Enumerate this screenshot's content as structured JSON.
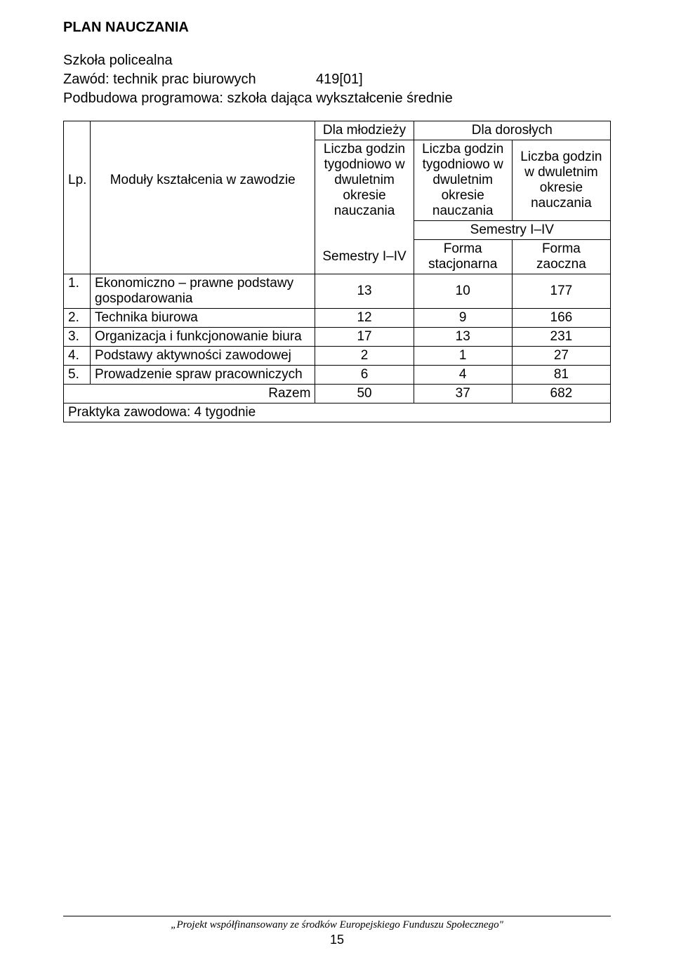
{
  "title": "PLAN NAUCZANIA",
  "intro": {
    "line1": "Szkoła policealna",
    "zawod_label": "Zawód: technik prac biurowych",
    "zawod_code": "419[01]",
    "line3": "Podbudowa programowa: szkoła dająca wykształcenie średnie"
  },
  "header": {
    "lp": "Lp.",
    "moduly": "Moduły kształcenia w zawodzie",
    "dla_mlodziezy": "Dla młodzieży",
    "dla_doroslych": "Dla dorosłych",
    "liczba1": "Liczba godzin tygodniowo w dwuletnim okresie nauczania",
    "liczba2": "Liczba godzin tygodniowo w dwuletnim okresie nauczania",
    "liczba3": "Liczba godzin w dwuletnim okresie nauczania",
    "semestry_left": "Semestry I–IV",
    "semestry_right": "Semestry I–IV",
    "forma_stacjonarna": "Forma stacjonarna",
    "forma_zaoczna": "Forma zaoczna"
  },
  "rows": [
    {
      "n": "1.",
      "name": "Ekonomiczno – prawne podstawy gospodarowania",
      "a": "13",
      "b": "10",
      "c": "177"
    },
    {
      "n": "2.",
      "name": "Technika biurowa",
      "a": "12",
      "b": "9",
      "c": "166"
    },
    {
      "n": "3.",
      "name": "Organizacja i funkcjonowanie biura",
      "a": "17",
      "b": "13",
      "c": "231"
    },
    {
      "n": "4.",
      "name": "Podstawy aktywności zawodowej",
      "a": "2",
      "b": "1",
      "c": "27"
    },
    {
      "n": "5.",
      "name": "Prowadzenie spraw pracowniczych",
      "a": "6",
      "b": "4",
      "c": "81"
    }
  ],
  "razem": {
    "label": "Razem",
    "a": "50",
    "b": "37",
    "c": "682"
  },
  "praktyka": "Praktyka zawodowa: 4 tygodnie",
  "footer": {
    "text": "„Projekt współfinansowany ze środków Europejskiego Funduszu Społecznego\"",
    "page": "15"
  }
}
